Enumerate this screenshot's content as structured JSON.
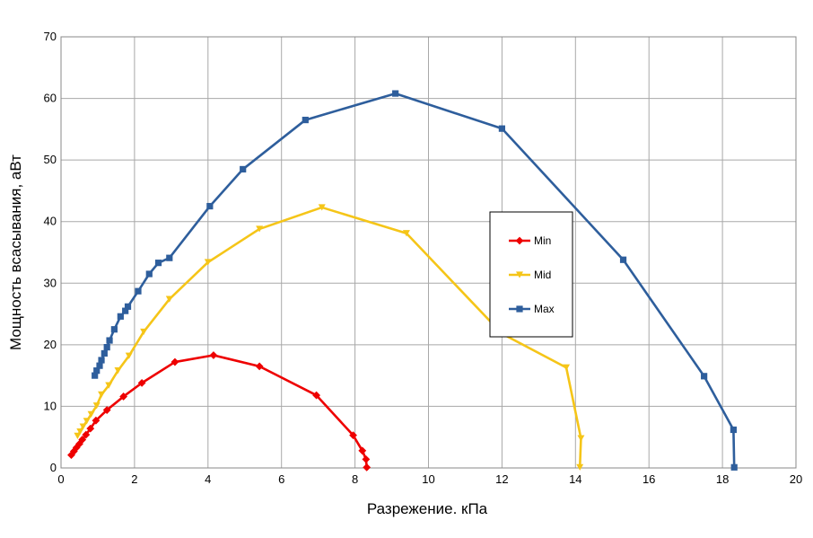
{
  "chart_data": {
    "type": "line",
    "xlabel": "Разрежение. кПа",
    "ylabel": "Мощность всасывания, аВт",
    "xlim": [
      0,
      20
    ],
    "ylim": [
      0,
      70
    ],
    "x_ticks": [
      0,
      2,
      4,
      6,
      8,
      10,
      12,
      14,
      16,
      18,
      20
    ],
    "y_ticks": [
      0,
      10,
      20,
      30,
      40,
      50,
      60,
      70
    ],
    "grid": true,
    "legend_position": "center-right",
    "series": [
      {
        "name": "Min",
        "color": "#ee0000",
        "marker": "diamond",
        "points": [
          [
            0.28,
            2.1
          ],
          [
            0.35,
            2.7
          ],
          [
            0.42,
            3.3
          ],
          [
            0.5,
            3.9
          ],
          [
            0.58,
            4.6
          ],
          [
            0.68,
            5.4
          ],
          [
            0.8,
            6.4
          ],
          [
            0.95,
            7.7
          ],
          [
            1.25,
            9.4
          ],
          [
            1.7,
            11.6
          ],
          [
            2.2,
            13.8
          ],
          [
            3.1,
            17.2
          ],
          [
            4.15,
            18.3
          ],
          [
            5.4,
            16.5
          ],
          [
            6.95,
            11.8
          ],
          [
            7.95,
            5.3
          ],
          [
            8.2,
            2.8
          ],
          [
            8.3,
            1.4
          ],
          [
            8.32,
            0.1
          ]
        ]
      },
      {
        "name": "Mid",
        "color": "#f5c518",
        "marker": "triangle",
        "points": [
          [
            0.45,
            5.2
          ],
          [
            0.52,
            5.9
          ],
          [
            0.6,
            6.7
          ],
          [
            0.7,
            7.6
          ],
          [
            0.82,
            8.7
          ],
          [
            0.97,
            10.1
          ],
          [
            1.1,
            11.9
          ],
          [
            1.3,
            13.4
          ],
          [
            1.55,
            15.8
          ],
          [
            1.85,
            18.2
          ],
          [
            2.25,
            22.1
          ],
          [
            2.95,
            27.4
          ],
          [
            4.0,
            33.4
          ],
          [
            5.4,
            38.8
          ],
          [
            7.1,
            42.3
          ],
          [
            9.4,
            38.1
          ],
          [
            12.0,
            21.8
          ],
          [
            13.75,
            16.3
          ],
          [
            14.15,
            4.8
          ],
          [
            14.12,
            0.1
          ]
        ]
      },
      {
        "name": "Max",
        "color": "#2e5e9c",
        "marker": "square",
        "points": [
          [
            0.92,
            15.0
          ],
          [
            0.97,
            15.8
          ],
          [
            1.05,
            16.6
          ],
          [
            1.1,
            17.5
          ],
          [
            1.18,
            18.6
          ],
          [
            1.25,
            19.6
          ],
          [
            1.32,
            20.7
          ],
          [
            1.45,
            22.5
          ],
          [
            1.62,
            24.6
          ],
          [
            1.75,
            25.5
          ],
          [
            1.82,
            26.2
          ],
          [
            2.1,
            28.7
          ],
          [
            2.4,
            31.5
          ],
          [
            2.65,
            33.3
          ],
          [
            2.95,
            34.1
          ],
          [
            4.05,
            42.5
          ],
          [
            4.95,
            48.5
          ],
          [
            6.65,
            56.5
          ],
          [
            9.1,
            60.8
          ],
          [
            12.0,
            55.1
          ],
          [
            15.3,
            33.8
          ],
          [
            17.5,
            14.9
          ],
          [
            18.3,
            6.2
          ],
          [
            18.32,
            0.1
          ]
        ]
      }
    ]
  }
}
